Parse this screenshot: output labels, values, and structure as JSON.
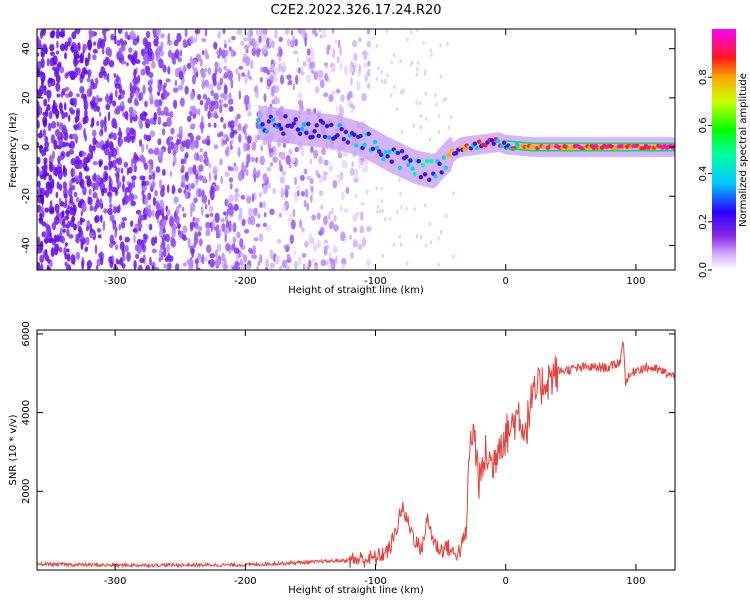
{
  "figure": {
    "title": "C2E2.2022.326.17.24.R20"
  },
  "chart_data": [
    {
      "type": "heatmap",
      "title": "",
      "xlabel": "Height of straight line (km)",
      "ylabel": "Frequency (Hz)",
      "xlim": [
        -360,
        130
      ],
      "ylim": [
        -50,
        48
      ],
      "xticks": [
        -300,
        -200,
        -100,
        0,
        100
      ],
      "yticks": [
        -40,
        -20,
        0,
        20,
        40
      ],
      "colorbar": {
        "label": "Normalized spectral amplitude",
        "range": [
          0.0,
          1.0
        ],
        "ticks": [
          0.0,
          0.2,
          0.4,
          0.6,
          0.8
        ],
        "colormap": "rainbow (white-violet-blue-cyan-green-yellow-red-magenta)"
      },
      "ridge": {
        "description": "dominant signal frequency vs height",
        "x": [
          -190,
          -160,
          -130,
          -110,
          -90,
          -70,
          -55,
          -45,
          -35,
          -20,
          -5,
          0,
          20,
          50,
          80,
          110,
          130
        ],
        "y": [
          10,
          8,
          6,
          3,
          -3,
          -8,
          -10,
          -4,
          0,
          1,
          2,
          1,
          0,
          0,
          0,
          0,
          0
        ]
      },
      "noise_region": [
        -360,
        -110
      ]
    },
    {
      "type": "line",
      "title": "",
      "xlabel": "Height of straight line (km)",
      "ylabel": "SNR (10 * v/v)",
      "xlim": [
        -360,
        130
      ],
      "ylim": [
        0,
        6100
      ],
      "xticks": [
        -300,
        -200,
        -100,
        0,
        100
      ],
      "yticks": [
        2000,
        4000,
        6000
      ],
      "color": "#e8403a",
      "series": [
        {
          "x": [
            -360,
            -300,
            -200,
            -150,
            -120,
            -100,
            -90,
            -85,
            -80,
            -75,
            -70,
            -65,
            -60,
            -55,
            -50,
            -45,
            -40,
            -35,
            -30,
            -28,
            -25,
            -20,
            -15,
            -10,
            -5,
            0,
            5,
            10,
            15,
            20,
            25,
            30,
            35,
            40,
            60,
            80,
            88,
            90,
            92,
            100,
            110,
            120,
            130
          ],
          "y": [
            150,
            120,
            130,
            200,
            250,
            300,
            500,
            900,
            1600,
            1200,
            800,
            500,
            1300,
            700,
            500,
            600,
            400,
            500,
            1000,
            3000,
            3600,
            2200,
            3000,
            2600,
            3300,
            3400,
            3700,
            4000,
            3500,
            4300,
            4600,
            4800,
            4900,
            5050,
            5150,
            5150,
            5300,
            5900,
            4800,
            5100,
            5150,
            5050,
            4900
          ]
        }
      ]
    }
  ]
}
